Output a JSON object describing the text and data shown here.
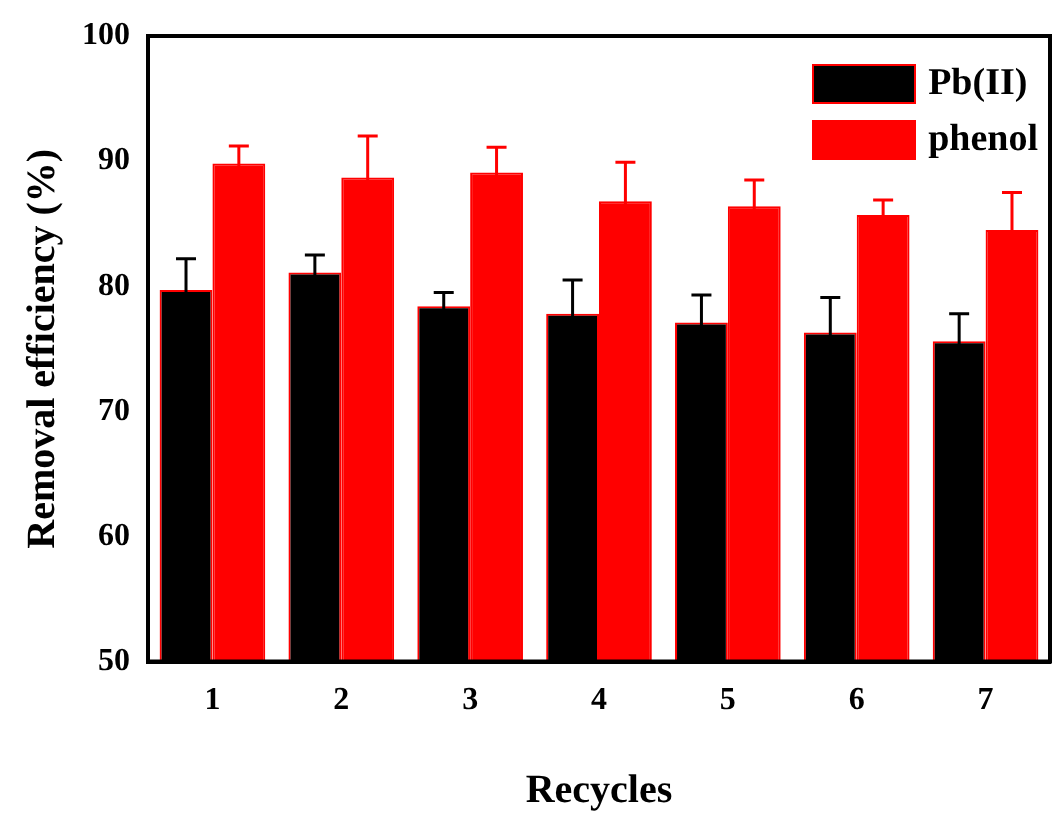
{
  "chart_data": {
    "type": "bar",
    "xlabel": "Recycles",
    "ylabel": "Removal efficiency (%)",
    "categories": [
      "1",
      "2",
      "3",
      "4",
      "5",
      "6",
      "7"
    ],
    "series": [
      {
        "name": "Pb(II)",
        "color": "#000000",
        "values": [
          79.7,
          81.1,
          78.4,
          77.8,
          77.1,
          76.3,
          75.6
        ],
        "errors": [
          2.5,
          1.4,
          1.1,
          2.7,
          2.2,
          2.8,
          2.2
        ]
      },
      {
        "name": "phenol",
        "color": "#ff0000",
        "values": [
          89.8,
          88.7,
          89.1,
          86.8,
          86.4,
          85.7,
          84.5
        ],
        "errors": [
          1.4,
          3.3,
          2.0,
          3.1,
          2.1,
          1.2,
          3.0
        ]
      }
    ],
    "ylim": [
      50,
      100
    ],
    "yticks": [
      50,
      60,
      70,
      80,
      90,
      100
    ],
    "grid": false,
    "legend": "top right"
  }
}
